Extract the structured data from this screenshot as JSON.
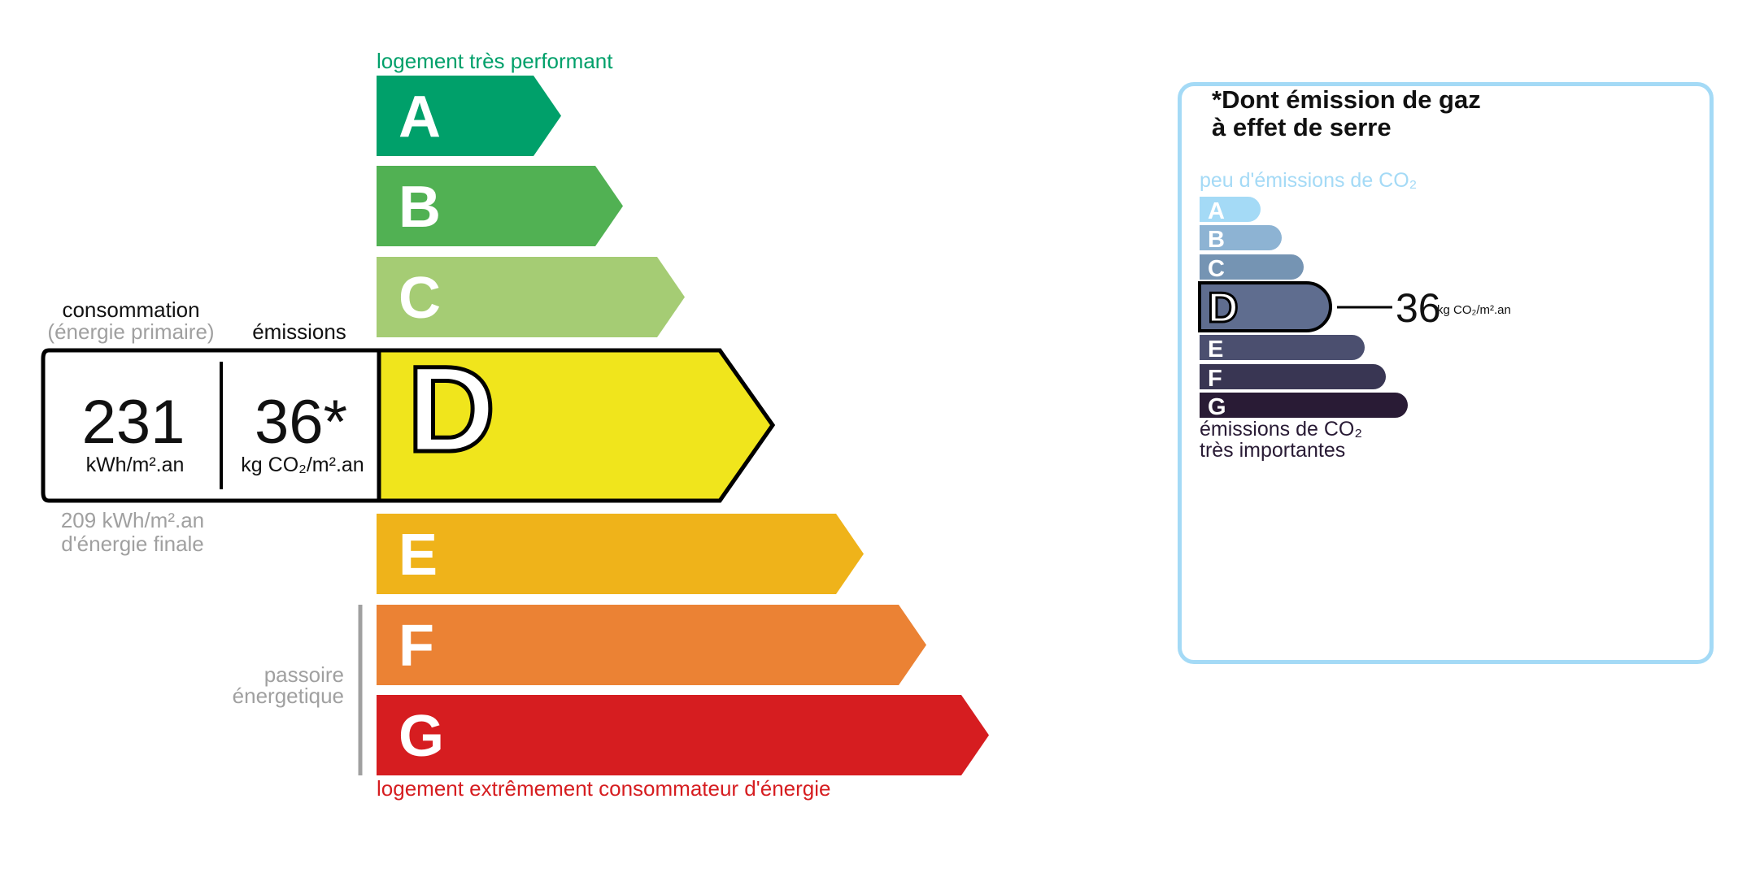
{
  "energy_label": {
    "top_caption": "logement très performant",
    "bottom_caption": "logement extrêmement consommateur d'énergie",
    "top_caption_color": "#00a06a",
    "bottom_caption_color": "#d61d20",
    "classes": [
      {
        "letter": "A",
        "color": "#00a06a"
      },
      {
        "letter": "B",
        "color": "#51b153"
      },
      {
        "letter": "C",
        "color": "#a5cc74"
      },
      {
        "letter": "D",
        "color": "#f0e51c"
      },
      {
        "letter": "E",
        "color": "#efb31a"
      },
      {
        "letter": "F",
        "color": "#eb8234"
      },
      {
        "letter": "G",
        "color": "#d61d20"
      }
    ],
    "current_class": "D",
    "consumption_header": "consommation",
    "consumption_subheader": "(énergie primaire)",
    "emissions_header": "émissions",
    "consumption_value": "231",
    "consumption_unit": "kWh/m².an",
    "emissions_value": "36*",
    "emissions_unit": "kg CO₂/m².an",
    "final_energy_value": "209 kWh/m².an",
    "final_energy_label": "d'énergie finale",
    "passoire_line1": "passoire",
    "passoire_line2": "énergetique"
  },
  "ghg_label": {
    "title_line1": "*Dont émission de gaz",
    "title_line2": "à effet de serre",
    "border_color": "#a4daf6",
    "top_caption": "peu d'émissions de CO₂",
    "bottom_caption_line1": "émissions de CO₂",
    "bottom_caption_line2": "très importantes",
    "classes": [
      {
        "letter": "A",
        "color": "#a4daf6"
      },
      {
        "letter": "B",
        "color": "#8db3d3"
      },
      {
        "letter": "C",
        "color": "#7594b3"
      },
      {
        "letter": "D",
        "color": "#5f6d8f"
      },
      {
        "letter": "E",
        "color": "#4b4f6f"
      },
      {
        "letter": "F",
        "color": "#393653"
      },
      {
        "letter": "G",
        "color": "#291b35"
      }
    ],
    "current_class": "D",
    "value": "36",
    "unit": "kg CO₂/m².an"
  }
}
